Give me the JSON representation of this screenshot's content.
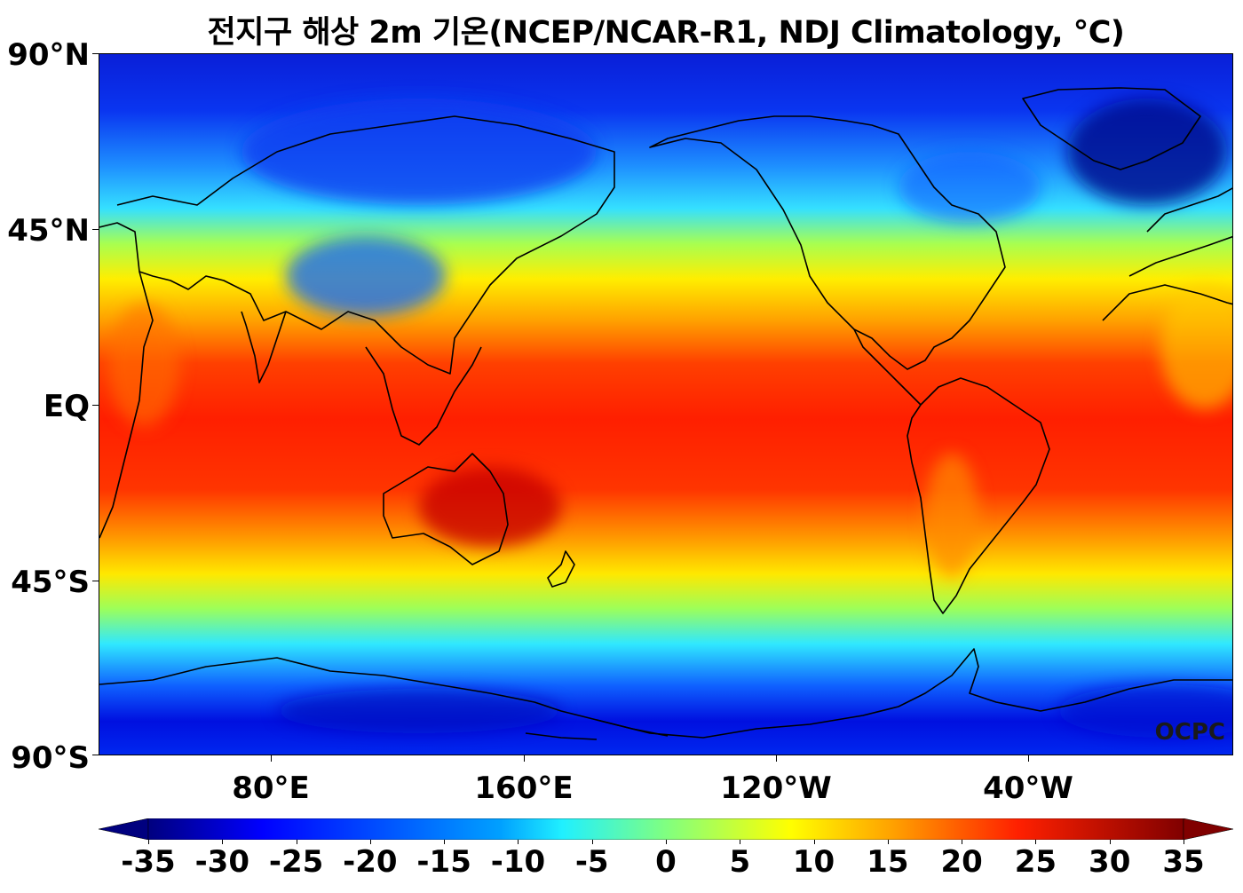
{
  "title": "전지구 해상 2m 기온(NCEP/NCAR-R1, NDJ Climatology, °C)",
  "credit": "OCPC",
  "y_axis": {
    "labels": [
      {
        "text": "90°N",
        "lat": 90
      },
      {
        "text": "45°N",
        "lat": 45
      },
      {
        "text": "EQ",
        "lat": 0
      },
      {
        "text": "45°S",
        "lat": -45
      },
      {
        "text": "90°S",
        "lat": -90
      }
    ]
  },
  "x_axis": {
    "lon_range": [
      25,
      385
    ],
    "labels": [
      {
        "text": "80°E",
        "lon": 80
      },
      {
        "text": "160°E",
        "lon": 160
      },
      {
        "text": "120°W",
        "lon": 240
      },
      {
        "text": "40°W",
        "lon": 320
      }
    ]
  },
  "colorbar": {
    "min": -35,
    "max": 35,
    "extend": "both",
    "ticks": [
      "-35",
      "-30",
      "-25",
      "-20",
      "-15",
      "-10",
      "-5",
      "0",
      "5",
      "10",
      "15",
      "20",
      "25",
      "30",
      "35"
    ],
    "colors": [
      "#00007f",
      "#0000ff",
      "#0080ff",
      "#00e0ff",
      "#7fff7f",
      "#ffff00",
      "#ff8000",
      "#ff1a00",
      "#800000"
    ]
  },
  "map": {
    "variable": "2m air temperature over ocean",
    "projection": "PlateCarree",
    "central_longitude": 205
  }
}
